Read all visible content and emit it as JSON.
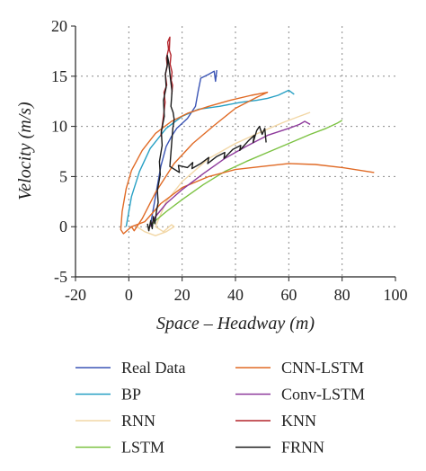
{
  "chart_data": {
    "type": "line",
    "xlabel": "Space – Headway (m)",
    "ylabel": "Velocity (m/s)",
    "xlim": [
      -20,
      100
    ],
    "ylim": [
      -5,
      20
    ],
    "xticks": [
      -20,
      0,
      20,
      40,
      60,
      80,
      100
    ],
    "yticks": [
      -5,
      0,
      5,
      10,
      15,
      20
    ],
    "xtick_labels": [
      "-20",
      "0",
      "20",
      "40",
      "60",
      "80",
      "100"
    ],
    "ytick_labels": [
      "-5",
      "0",
      "5",
      "10",
      "15",
      "20"
    ],
    "grid": true,
    "legend_position": "bottom",
    "series": [
      {
        "name": "Real Data",
        "color": "#3b55b5",
        "points": [
          [
            8,
            0
          ],
          [
            10,
            3
          ],
          [
            12,
            6
          ],
          [
            14,
            8
          ],
          [
            16,
            9
          ],
          [
            18,
            9.8
          ],
          [
            22,
            10.8
          ],
          [
            25,
            12
          ],
          [
            26,
            13.5
          ],
          [
            27,
            14.8
          ],
          [
            30,
            15.2
          ],
          [
            32,
            15.5
          ],
          [
            32.5,
            14.5
          ],
          [
            33,
            15.6
          ]
        ]
      },
      {
        "name": "BP",
        "color": "#27a0c4",
        "points": [
          [
            -1,
            0
          ],
          [
            1,
            3
          ],
          [
            4,
            5.5
          ],
          [
            8,
            7.8
          ],
          [
            14,
            9.8
          ],
          [
            20,
            11
          ],
          [
            26,
            11.7
          ],
          [
            34,
            12
          ],
          [
            42,
            12.4
          ],
          [
            48,
            12.6
          ],
          [
            52,
            12.8
          ],
          [
            56,
            13.1
          ],
          [
            60,
            13.6
          ],
          [
            62,
            13.2
          ]
        ]
      },
      {
        "name": "RNN",
        "color": "#f2d7a6",
        "points": [
          [
            3,
            0
          ],
          [
            6,
            -0.5
          ],
          [
            10,
            -0.9
          ],
          [
            14,
            -0.5
          ],
          [
            17,
            0
          ],
          [
            16,
            0.2
          ],
          [
            13,
            -0.5
          ],
          [
            10,
            0
          ],
          [
            14,
            2.5
          ],
          [
            20,
            4.5
          ],
          [
            30,
            6.8
          ],
          [
            40,
            8.3
          ],
          [
            50,
            9.5
          ],
          [
            58,
            10.4
          ],
          [
            64,
            11
          ],
          [
            68,
            11.4
          ]
        ]
      },
      {
        "name": "LSTM",
        "color": "#7cc242",
        "points": [
          [
            8,
            0
          ],
          [
            10,
            0.6
          ],
          [
            14,
            1.5
          ],
          [
            20,
            2.7
          ],
          [
            28,
            4.2
          ],
          [
            36,
            5.5
          ],
          [
            44,
            6.5
          ],
          [
            52,
            7.4
          ],
          [
            60,
            8.3
          ],
          [
            68,
            9.2
          ],
          [
            74,
            9.8
          ],
          [
            78,
            10.3
          ],
          [
            80,
            10.6
          ]
        ]
      },
      {
        "name": "CNN-LSTM",
        "color": "#e06a25",
        "points": [
          [
            1,
            0
          ],
          [
            -2,
            -0.7
          ],
          [
            -3,
            -0.3
          ],
          [
            -2.5,
            1.5
          ],
          [
            -1,
            3.8
          ],
          [
            1,
            5.6
          ],
          [
            5,
            7.6
          ],
          [
            10,
            9.3
          ],
          [
            16,
            10.5
          ],
          [
            22,
            11.3
          ],
          [
            30,
            12
          ],
          [
            38,
            12.6
          ],
          [
            46,
            13.1
          ],
          [
            52,
            13.4
          ],
          [
            48,
            12.9
          ],
          [
            40,
            11.8
          ],
          [
            32,
            10.1
          ],
          [
            24,
            8.3
          ],
          [
            17,
            6.3
          ],
          [
            10,
            3.4
          ],
          [
            5,
            0.8
          ],
          [
            2,
            -0.4
          ],
          [
            1,
            0
          ],
          [
            6,
            0.5
          ],
          [
            12,
            2.3
          ],
          [
            20,
            3.9
          ],
          [
            30,
            5
          ],
          [
            40,
            5.7
          ],
          [
            50,
            6
          ],
          [
            60,
            6.3
          ],
          [
            70,
            6.2
          ],
          [
            80,
            5.9
          ],
          [
            92,
            5.4
          ]
        ]
      },
      {
        "name": "Conv-LSTM",
        "color": "#8e3a9c",
        "points": [
          [
            8,
            0
          ],
          [
            10,
            1
          ],
          [
            14,
            2.3
          ],
          [
            20,
            3.7
          ],
          [
            28,
            5.3
          ],
          [
            36,
            6.8
          ],
          [
            44,
            8
          ],
          [
            52,
            9.1
          ],
          [
            60,
            9.8
          ],
          [
            64,
            10.2
          ],
          [
            66,
            10.5
          ],
          [
            68,
            10.2
          ]
        ]
      },
      {
        "name": "KNN",
        "color": "#b3252c",
        "points": [
          [
            12,
            9
          ],
          [
            13,
            11
          ],
          [
            13.6,
            12.4
          ],
          [
            13.2,
            13.4
          ],
          [
            14.2,
            14.1
          ],
          [
            13.7,
            15.2
          ],
          [
            14.4,
            16
          ],
          [
            14.1,
            16.8
          ],
          [
            14.9,
            17.7
          ],
          [
            14.6,
            18.4
          ],
          [
            15.4,
            18.9
          ],
          [
            15.2,
            17.6
          ],
          [
            15.8,
            17.1
          ],
          [
            15.5,
            16.2
          ],
          [
            16.2,
            15.4
          ],
          [
            15.9,
            14.6
          ],
          [
            16.4,
            14.1
          ],
          [
            16.1,
            13.2
          ]
        ]
      },
      {
        "name": "FRNN",
        "color": "#1c1c1c",
        "points": [
          [
            7,
            0.3
          ],
          [
            7.5,
            -0.4
          ],
          [
            8.2,
            0.6
          ],
          [
            8.8,
            -0.2
          ],
          [
            9.2,
            1
          ],
          [
            9.8,
            0.3
          ],
          [
            10.4,
            1.6
          ],
          [
            11,
            2.4
          ],
          [
            10.7,
            3.6
          ],
          [
            11.8,
            5.2
          ],
          [
            11.5,
            6.5
          ],
          [
            12.5,
            8.1
          ],
          [
            12.2,
            9.5
          ],
          [
            13.3,
            11
          ],
          [
            13,
            12.6
          ],
          [
            14,
            13.9
          ],
          [
            13.7,
            15.2
          ],
          [
            14.5,
            16.2
          ],
          [
            14.4,
            17.1
          ],
          [
            14.9,
            16.5
          ],
          [
            15.6,
            14.8
          ],
          [
            16.2,
            13.5
          ],
          [
            15.8,
            12
          ],
          [
            16.6,
            11.4
          ],
          [
            17,
            10.7
          ],
          [
            16.5,
            9.8
          ],
          [
            15.4,
            6
          ],
          [
            19,
            5.4
          ],
          [
            18.6,
            6.1
          ],
          [
            22,
            5.9
          ],
          [
            24,
            6.4
          ],
          [
            23.7,
            5.8
          ],
          [
            27,
            6.3
          ],
          [
            30,
            6.9
          ],
          [
            29.6,
            6.3
          ],
          [
            33,
            7
          ],
          [
            36,
            7.4
          ],
          [
            35.7,
            6.8
          ],
          [
            39,
            7.7
          ],
          [
            42,
            8.1
          ],
          [
            41.6,
            7.6
          ],
          [
            45,
            8.6
          ],
          [
            47,
            9.1
          ],
          [
            46.6,
            8.4
          ],
          [
            48,
            9.6
          ],
          [
            49,
            10
          ],
          [
            50,
            9.2
          ],
          [
            51,
            9.8
          ],
          [
            51.5,
            8.4
          ]
        ]
      }
    ]
  }
}
